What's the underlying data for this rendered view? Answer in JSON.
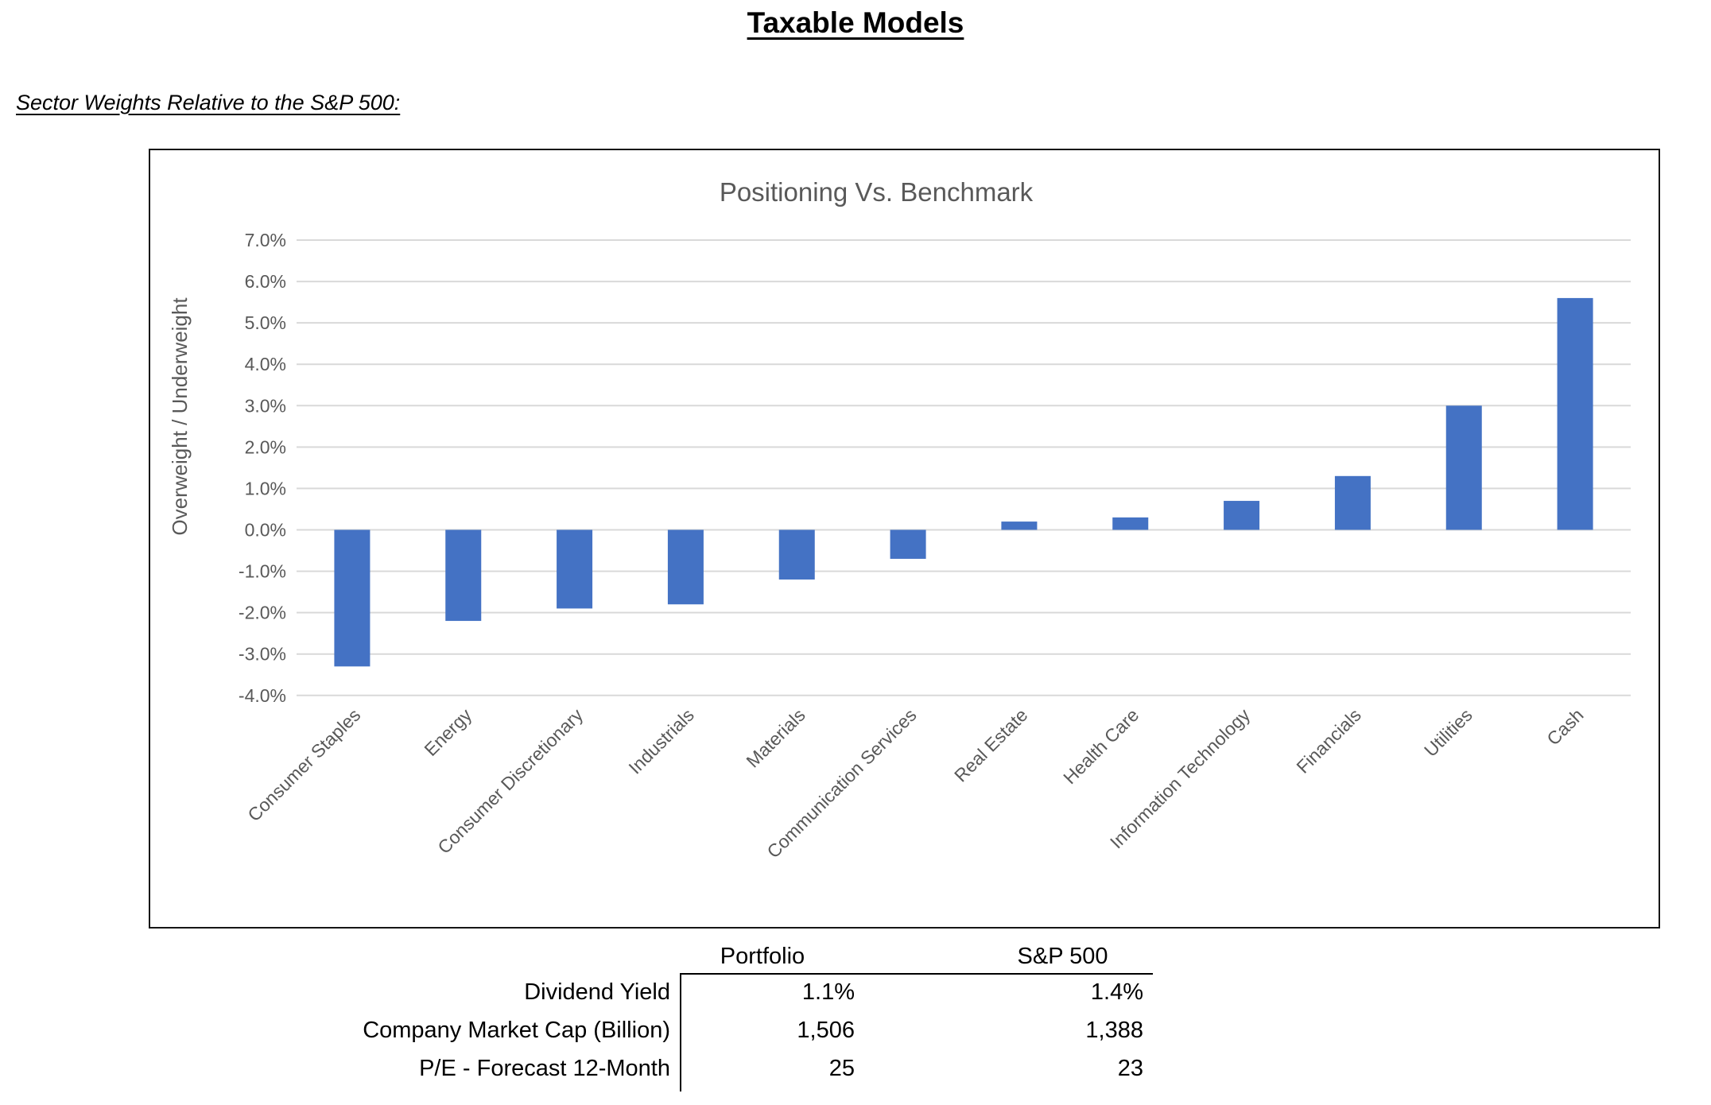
{
  "page": {
    "title": "Taxable Models",
    "subtitle": "Sector Weights Relative to the S&P 500:"
  },
  "chart_data": {
    "type": "bar",
    "title": "Positioning Vs. Benchmark",
    "ylabel": "Overweight / Underweight",
    "categories": [
      "Consumer Staples",
      "Energy",
      "Consumer Discretionary",
      "Industrials",
      "Materials",
      "Communication Services",
      "Real Estate",
      "Health Care",
      "Information Technology",
      "Financials",
      "Utilities",
      "Cash"
    ],
    "values": [
      -3.3,
      -2.2,
      -1.9,
      -1.8,
      -1.2,
      -0.7,
      0.2,
      0.3,
      0.7,
      1.3,
      3.0,
      5.6
    ],
    "ylim": [
      -4.0,
      7.0
    ],
    "ytick_step": 1.0,
    "ytick_suffix": "%",
    "grid": true,
    "legend": "none",
    "bar_color": "#4472C4",
    "gridline_color": "#D9D9D9",
    "text_color": "#595959"
  },
  "table": {
    "col_headers": [
      "Portfolio",
      "S&P 500"
    ],
    "rows": [
      {
        "label": "Dividend Yield",
        "portfolio": "1.1%",
        "sp500": "1.4%"
      },
      {
        "label": "Company Market Cap (Billion)",
        "portfolio": "1,506",
        "sp500": "1,388"
      },
      {
        "label": "P/E - Forecast 12-Month",
        "portfolio": "25",
        "sp500": "23"
      }
    ]
  }
}
